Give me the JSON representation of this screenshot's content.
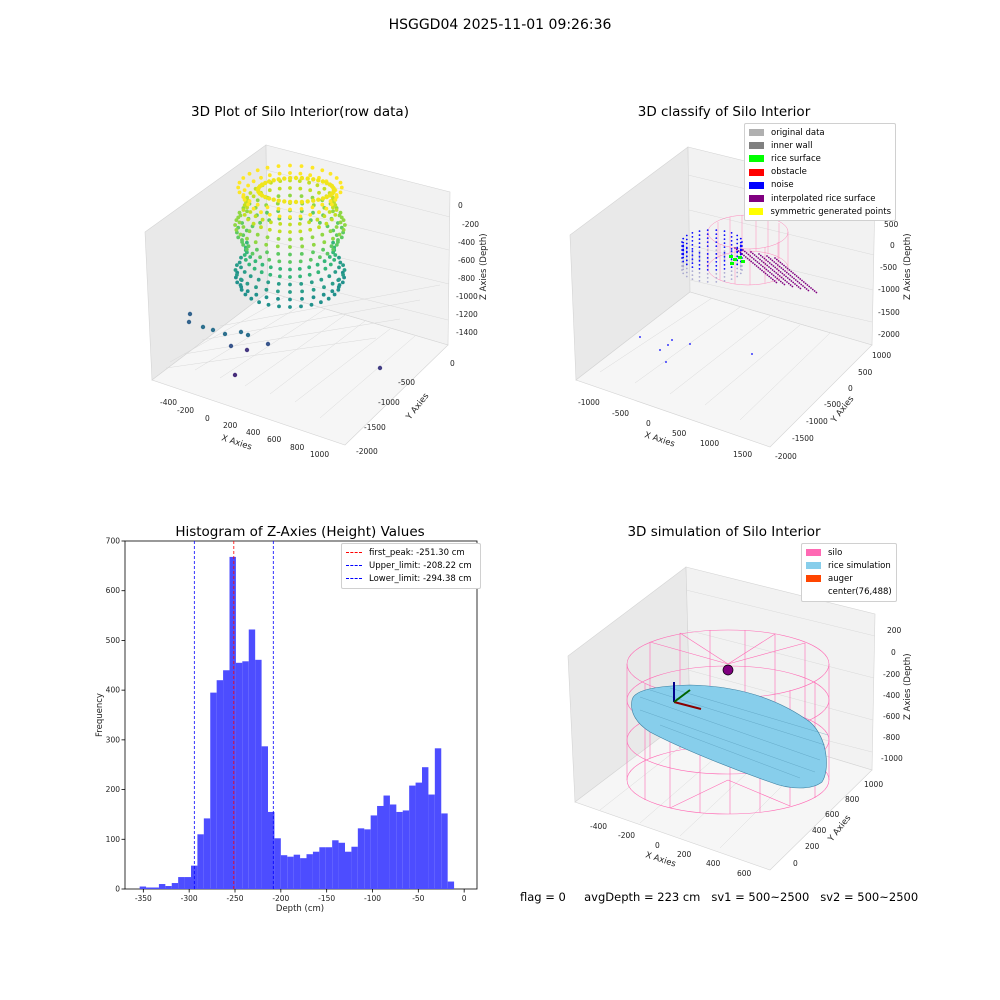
{
  "figure": {
    "suptitle": "HSGGD04 2025-11-01 09:26:36"
  },
  "footer": {
    "text": "flag = 0     avgDepth = 223 cm   sv1 = 500~2500   sv2 = 500~2500"
  },
  "chart_data": [
    {
      "type": "scatter",
      "title": "3D Plot of Silo Interior(row data)",
      "xlabel": "X Axies",
      "ylabel": "Y Axies",
      "zlabel": "Z Axies (Depth)",
      "x_ticks": [
        "-400",
        "-200",
        "0",
        "200",
        "400",
        "600",
        "800",
        "1000"
      ],
      "y_ticks": [
        "0",
        "-500",
        "-1000",
        "-1500",
        "-2000"
      ],
      "z_ticks": [
        "0",
        "-200",
        "-400",
        "-600",
        "-800",
        "-1000",
        "-1200",
        "-1400"
      ],
      "colormap": "viridis"
    },
    {
      "type": "scatter",
      "title": "3D classify of Silo Interior",
      "xlabel": "X Axies",
      "ylabel": "Y Axies",
      "zlabel": "Z Axies (Depth)",
      "x_ticks": [
        "-1000",
        "-500",
        "0",
        "500",
        "1000",
        "1500"
      ],
      "y_ticks": [
        "1000",
        "500",
        "0",
        "-500",
        "-1000",
        "-1500",
        "-2000"
      ],
      "z_ticks": [
        "500",
        "0",
        "-500",
        "-1000",
        "-1500",
        "-2000"
      ],
      "legend": [
        {
          "label": "original data",
          "color": "#b0b0b0"
        },
        {
          "label": "inner wall",
          "color": "#808080"
        },
        {
          "label": "rice surface",
          "color": "#00ff00"
        },
        {
          "label": "obstacle",
          "color": "#ff0000"
        },
        {
          "label": "noise",
          "color": "#0000ff"
        },
        {
          "label": "interpolated rice surface",
          "color": "#800080"
        },
        {
          "label": "symmetric generated points",
          "color": "#ffff00"
        }
      ]
    },
    {
      "type": "bar",
      "title": "Histogram of Z-Axies (Height) Values",
      "xlabel": "Depth (cm)",
      "ylabel": "Frequency",
      "xlim": [
        -370,
        14
      ],
      "ylim": [
        0,
        700
      ],
      "x_ticks": [
        -350,
        -300,
        -250,
        -200,
        -150,
        -100,
        -50,
        0
      ],
      "y_ticks": [
        0,
        100,
        200,
        300,
        400,
        500,
        600,
        700
      ],
      "bar_color": "#4d4dff",
      "bins": [
        {
          "x0": -354,
          "x1": -347,
          "value": 5
        },
        {
          "x0": -347,
          "x1": -340,
          "value": 3
        },
        {
          "x0": -340,
          "x1": -333,
          "value": 3
        },
        {
          "x0": -333,
          "x1": -326,
          "value": 10
        },
        {
          "x0": -326,
          "x1": -319,
          "value": 6
        },
        {
          "x0": -319,
          "x1": -312,
          "value": 12
        },
        {
          "x0": -312,
          "x1": -305,
          "value": 24
        },
        {
          "x0": -305,
          "x1": -298,
          "value": 24
        },
        {
          "x0": -298,
          "x1": -291,
          "value": 47
        },
        {
          "x0": -291,
          "x1": -284,
          "value": 110
        },
        {
          "x0": -284,
          "x1": -277,
          "value": 142
        },
        {
          "x0": -277,
          "x1": -270,
          "value": 395
        },
        {
          "x0": -270,
          "x1": -263,
          "value": 420
        },
        {
          "x0": -263,
          "x1": -256,
          "value": 440
        },
        {
          "x0": -256,
          "x1": -249,
          "value": 668
        },
        {
          "x0": -249,
          "x1": -242,
          "value": 455
        },
        {
          "x0": -242,
          "x1": -235,
          "value": 458
        },
        {
          "x0": -235,
          "x1": -228,
          "value": 522
        },
        {
          "x0": -228,
          "x1": -221,
          "value": 461
        },
        {
          "x0": -221,
          "x1": -214,
          "value": 287
        },
        {
          "x0": -214,
          "x1": -207,
          "value": 155
        },
        {
          "x0": -207,
          "x1": -200,
          "value": 102
        },
        {
          "x0": -200,
          "x1": -193,
          "value": 68
        },
        {
          "x0": -193,
          "x1": -186,
          "value": 65
        },
        {
          "x0": -186,
          "x1": -179,
          "value": 69
        },
        {
          "x0": -179,
          "x1": -172,
          "value": 62
        },
        {
          "x0": -172,
          "x1": -165,
          "value": 70
        },
        {
          "x0": -165,
          "x1": -158,
          "value": 75
        },
        {
          "x0": -158,
          "x1": -151,
          "value": 84
        },
        {
          "x0": -151,
          "x1": -144,
          "value": 84
        },
        {
          "x0": -144,
          "x1": -137,
          "value": 98
        },
        {
          "x0": -137,
          "x1": -130,
          "value": 93
        },
        {
          "x0": -130,
          "x1": -123,
          "value": 75
        },
        {
          "x0": -123,
          "x1": -116,
          "value": 85
        },
        {
          "x0": -116,
          "x1": -109,
          "value": 122
        },
        {
          "x0": -109,
          "x1": -102,
          "value": 120
        },
        {
          "x0": -102,
          "x1": -95,
          "value": 148
        },
        {
          "x0": -95,
          "x1": -88,
          "value": 167
        },
        {
          "x0": -88,
          "x1": -81,
          "value": 188
        },
        {
          "x0": -81,
          "x1": -74,
          "value": 170
        },
        {
          "x0": -74,
          "x1": -67,
          "value": 155
        },
        {
          "x0": -67,
          "x1": -60,
          "value": 158
        },
        {
          "x0": -60,
          "x1": -53,
          "value": 208
        },
        {
          "x0": -53,
          "x1": -46,
          "value": 214
        },
        {
          "x0": -46,
          "x1": -39,
          "value": 245
        },
        {
          "x0": -39,
          "x1": -32,
          "value": 190
        },
        {
          "x0": -32,
          "x1": -25,
          "value": 283
        },
        {
          "x0": -25,
          "x1": -18,
          "value": 152
        },
        {
          "x0": -18,
          "x1": -11,
          "value": 15
        }
      ],
      "vlines": [
        {
          "x": -251.3,
          "label": "first_peak: -251.30 cm",
          "color": "#ff0000"
        },
        {
          "x": -208.22,
          "label": "Upper_limit: -208.22 cm",
          "color": "#0000ff"
        },
        {
          "x": -294.38,
          "label": "Lower_limit: -294.38 cm",
          "color": "#0000ff"
        }
      ]
    },
    {
      "type": "scatter",
      "title": "3D simulation of Silo Interior",
      "xlabel": "X Axies",
      "ylabel": "Y Axies",
      "zlabel": "Z Axies (Depth)",
      "x_ticks": [
        "-400",
        "-200",
        "0",
        "200",
        "400",
        "600"
      ],
      "y_ticks": [
        "0",
        "200",
        "400",
        "600",
        "800",
        "1000"
      ],
      "z_ticks": [
        "200",
        "0",
        "-200",
        "-400",
        "-600",
        "-800",
        "-1000"
      ],
      "legend": [
        {
          "label": "silo",
          "color": "#ff69b4"
        },
        {
          "label": "rice simulation",
          "color": "#87ceeb"
        },
        {
          "label": "auger",
          "color": "#ff4500"
        },
        {
          "label": "center(76,488)",
          "color": ""
        }
      ]
    }
  ]
}
